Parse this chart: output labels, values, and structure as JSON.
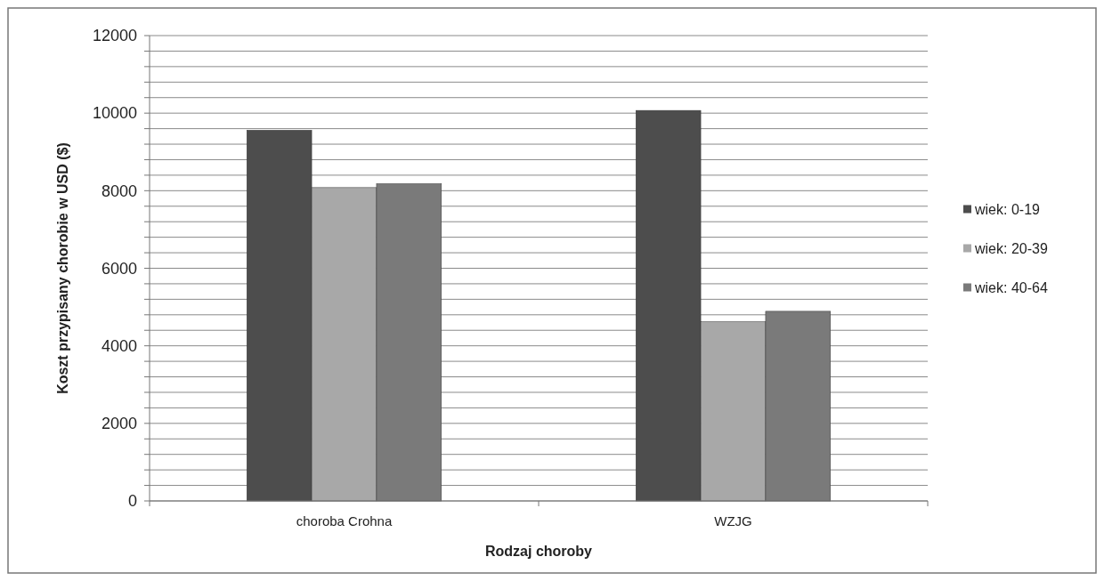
{
  "chart_data": {
    "type": "bar",
    "xlabel": "Rodzaj choroby",
    "ylabel": "Koszt przypisany chorobie w USD ($)",
    "categories": [
      "choroba Crohna",
      "WZJG"
    ],
    "series": [
      {
        "name": "wiek: 0-19",
        "color": "#4d4d4d",
        "values": [
          9560,
          10070
        ]
      },
      {
        "name": "wiek: 20-39",
        "color": "#a8a8a8",
        "values": [
          8080,
          4620
        ]
      },
      {
        "name": "wiek: 40-64",
        "color": "#7a7a7a",
        "values": [
          8180,
          4890
        ]
      }
    ],
    "ylim": [
      0,
      12000
    ],
    "yticks": [
      0,
      {
        "value": 400,
        "label": null
      },
      {
        "value": 800,
        "label": null
      },
      {
        "value": 1200,
        "label": null
      },
      {
        "value": 1600,
        "label": null
      },
      2000,
      {
        "value": 2400,
        "label": null
      },
      {
        "value": 2800,
        "label": null
      },
      {
        "value": 3200,
        "label": null
      },
      {
        "value": 3600,
        "label": null
      },
      4000,
      {
        "value": 4400,
        "label": null
      },
      {
        "value": 4800,
        "label": null
      },
      {
        "value": 5200,
        "label": null
      },
      {
        "value": 5600,
        "label": null
      },
      6000,
      {
        "value": 6400,
        "label": null
      },
      {
        "value": 6800,
        "label": null
      },
      {
        "value": 7200,
        "label": null
      },
      {
        "value": 7600,
        "label": null
      },
      8000,
      {
        "value": 8400,
        "label": null
      },
      {
        "value": 8800,
        "label": null
      },
      {
        "value": 9200,
        "label": null
      },
      {
        "value": 9600,
        "label": null
      },
      10000,
      {
        "value": 10400,
        "label": null
      },
      {
        "value": 10800,
        "label": null
      },
      {
        "value": 11200,
        "label": null
      },
      {
        "value": 11600,
        "label": null
      },
      12000
    ],
    "grid": true,
    "legend": "right"
  }
}
